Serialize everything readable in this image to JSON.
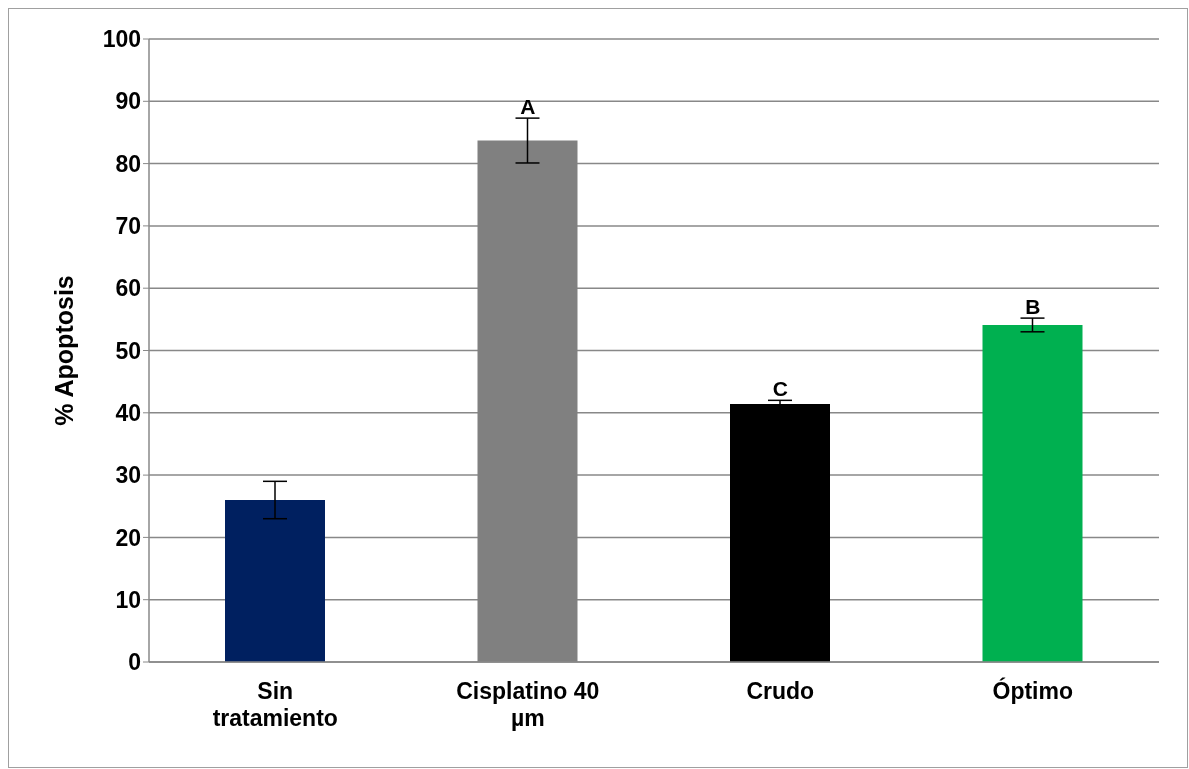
{
  "chart_data": {
    "type": "bar",
    "ylabel": "% Apoptosis",
    "categories": [
      "Sin tratamiento",
      "Cisplatino 40 µm",
      "Crudo",
      "Óptimo"
    ],
    "values": [
      26,
      83.7,
      41.4,
      54.1
    ],
    "colors": [
      "#002060",
      "#808080",
      "#000000",
      "#00b050"
    ],
    "errors": [
      3,
      3.6,
      0.6,
      1.1
    ],
    "ylim": [
      0,
      100
    ],
    "yticks": [
      0,
      10,
      20,
      30,
      40,
      50,
      60,
      70,
      80,
      90,
      100
    ],
    "grid": "y",
    "legend": false,
    "annotations": [
      {
        "text": "A",
        "x": "Cisplatino 40 µm",
        "y": 87.3
      },
      {
        "text": "C",
        "x": "Crudo",
        "y": 42
      },
      {
        "text": "B",
        "x": "Óptimo",
        "y": 55.2
      }
    ]
  }
}
